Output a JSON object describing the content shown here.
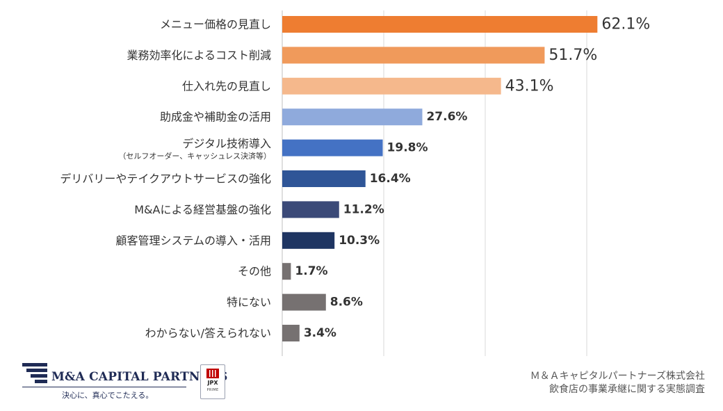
{
  "chart_data": {
    "type": "bar",
    "orientation": "horizontal",
    "categories": [
      "メニュー価格の見直し",
      "業務効率化によるコスト削減",
      "仕入れ先の見直し",
      "助成金や補助金の活用",
      "デジタル技術導入",
      "デリバリーやテイクアウトサービスの強化",
      "M&Aによる経営基盤の強化",
      "顧客管理システムの導入・活用",
      "その他",
      "特にない",
      "わからない/答えられない"
    ],
    "sublabels": [
      "",
      "",
      "",
      "",
      "（セルフオーダー、キャッシュレス決済等）",
      "",
      "",
      "",
      "",
      "",
      ""
    ],
    "values": [
      62.1,
      51.7,
      43.1,
      27.6,
      19.8,
      16.4,
      11.2,
      10.3,
      1.7,
      8.6,
      3.4
    ],
    "value_labels": [
      "62.1%",
      "51.7%",
      "43.1%",
      "27.6%",
      "19.8%",
      "16.4%",
      "11.2%",
      "10.3%",
      "1.7%",
      "8.6%",
      "3.4%"
    ],
    "colors": [
      "#ee7d31",
      "#f09a5b",
      "#f5b88c",
      "#8faadc",
      "#4472c4",
      "#2f5597",
      "#3b4a78",
      "#1f3562",
      "#767171",
      "#767171",
      "#767171"
    ],
    "xlim": [
      0,
      70
    ],
    "grid": true,
    "title": "",
    "xlabel": "",
    "ylabel": ""
  },
  "footer": {
    "company_logo_text": "M&A CAPITAL PARTNERS",
    "tagline": "決心に、真心でこたえる。",
    "jpx_label": "JPX",
    "jpx_sub": "PRIME",
    "source_line1": "Ｍ＆Ａキャピタルパートナーズ株式会社",
    "source_line2": "飲食店の事業承継に関する実態調査"
  }
}
